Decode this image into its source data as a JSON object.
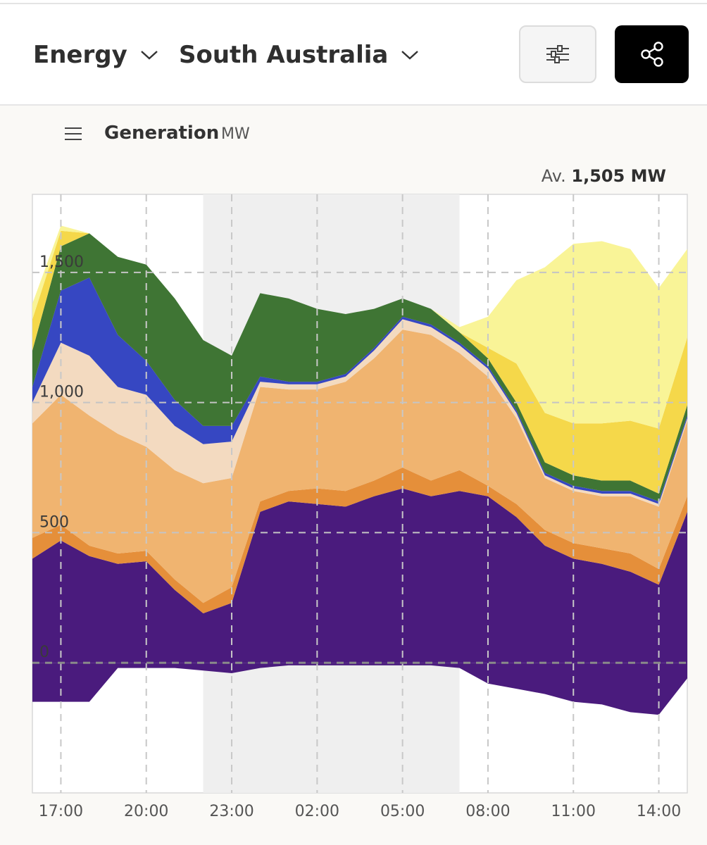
{
  "header": {
    "region_type": "Energy",
    "region": "South Australia",
    "filter_icon": "sliders-icon",
    "share_icon": "share-icon"
  },
  "panel": {
    "menu_icon": "hamburger-menu-icon",
    "title": "Generation",
    "unit": "MW",
    "average_prefix": "Av.",
    "average_value": "1,505 MW"
  },
  "chart_data": {
    "type": "area",
    "stacked": true,
    "ylim": [
      -500,
      1800
    ],
    "yticks": [
      0,
      500,
      1000,
      1500
    ],
    "ytick_labels": [
      "0",
      "500",
      "1,000",
      "1,500"
    ],
    "x": [
      "16:00",
      "17:00",
      "18:00",
      "19:00",
      "20:00",
      "21:00",
      "22:00",
      "23:00",
      "00:00",
      "01:00",
      "02:00",
      "03:00",
      "04:00",
      "05:00",
      "06:00",
      "07:00",
      "08:00",
      "09:00",
      "10:00",
      "11:00",
      "12:00",
      "13:00",
      "14:00",
      "15:00"
    ],
    "xtick_labels": [
      "17:00",
      "20:00",
      "23:00",
      "02:00",
      "05:00",
      "08:00",
      "11:00",
      "14:00"
    ],
    "night_band": [
      "22:00",
      "07:00"
    ],
    "grid": true,
    "colors": {
      "imports": "#4a1b7d",
      "battery": "#e58f3a",
      "gas": "#f0b470",
      "gas_peak": "#f3dac0",
      "distillate": "#3647c2",
      "wind": "#3f7534",
      "utility_solar": "#f5d84a",
      "rooftop_solar": "#f9f497"
    },
    "series": [
      {
        "key": "imports",
        "values": [
          400,
          470,
          410,
          380,
          390,
          280,
          190,
          230,
          580,
          620,
          610,
          600,
          640,
          670,
          640,
          660,
          640,
          560,
          450,
          400,
          380,
          350,
          300,
          580
        ]
      },
      {
        "key": "battery",
        "values": [
          80,
          60,
          40,
          40,
          40,
          40,
          40,
          60,
          40,
          40,
          60,
          60,
          60,
          80,
          60,
          80,
          40,
          50,
          60,
          60,
          60,
          70,
          60,
          60
        ]
      },
      {
        "key": "gas",
        "values": [
          440,
          500,
          500,
          460,
          400,
          420,
          460,
          420,
          440,
          390,
          380,
          420,
          470,
          530,
          560,
          450,
          420,
          330,
          200,
          200,
          200,
          220,
          240,
          290
        ]
      },
      {
        "key": "gas_peak",
        "values": [
          80,
          200,
          230,
          180,
          200,
          170,
          150,
          140,
          20,
          20,
          20,
          20,
          30,
          40,
          30,
          30,
          30,
          20,
          10,
          10,
          10,
          10,
          10,
          10
        ]
      },
      {
        "key": "distillate",
        "values": [
          60,
          200,
          300,
          200,
          130,
          100,
          70,
          60,
          20,
          10,
          10,
          10,
          10,
          10,
          10,
          10,
          10,
          10,
          10,
          10,
          10,
          10,
          10,
          10
        ]
      },
      {
        "key": "wind",
        "values": [
          140,
          170,
          170,
          300,
          370,
          390,
          330,
          270,
          320,
          320,
          280,
          230,
          150,
          70,
          60,
          40,
          30,
          30,
          40,
          40,
          40,
          40,
          30,
          40
        ]
      },
      {
        "key": "utility_solar",
        "values": [
          120,
          60,
          0,
          0,
          0,
          0,
          0,
          0,
          0,
          0,
          0,
          0,
          0,
          0,
          0,
          0,
          40,
          150,
          190,
          200,
          220,
          230,
          250,
          260
        ]
      },
      {
        "key": "rooftop_solar",
        "values": [
          60,
          20,
          0,
          0,
          0,
          0,
          0,
          0,
          0,
          0,
          0,
          0,
          0,
          0,
          0,
          20,
          120,
          320,
          560,
          690,
          700,
          660,
          540,
          340
        ]
      }
    ],
    "negative_series": {
      "key": "imports_export",
      "values": [
        -150,
        -150,
        -150,
        -20,
        -20,
        -20,
        -30,
        -40,
        -20,
        -10,
        -10,
        -10,
        -10,
        -10,
        -10,
        -20,
        -80,
        -100,
        -120,
        -150,
        -160,
        -190,
        -200,
        -60
      ]
    }
  }
}
